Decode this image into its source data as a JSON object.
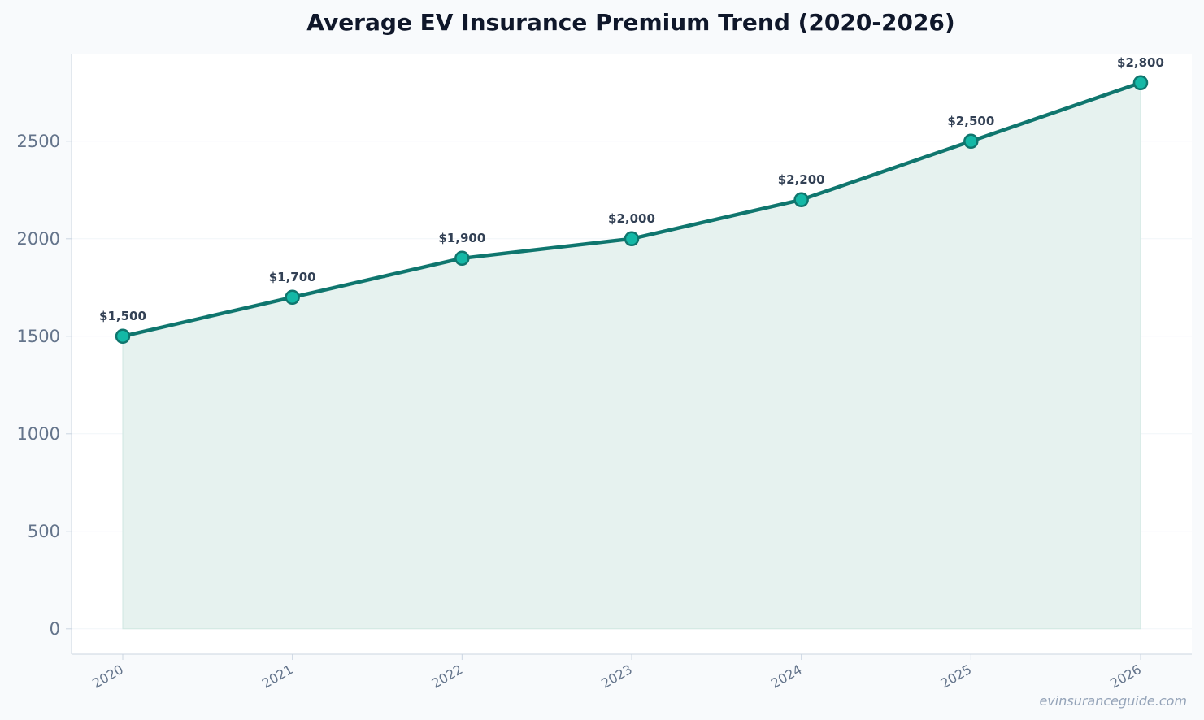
{
  "colors": {
    "line": "#0f766e",
    "marker_fill": "#14b8a6",
    "area_fill": "#e6f2ef",
    "grid": "#f1f5f9",
    "axis": "#cbd5e1"
  },
  "watermark": "evinsuranceguide.com",
  "chart_data": {
    "type": "area",
    "title": "Average EV Insurance Premium Trend (2020-2026)",
    "xlabel": "",
    "ylabel": "",
    "x": [
      "2020",
      "2021",
      "2022",
      "2023",
      "2024",
      "2025",
      "2026"
    ],
    "series": [
      {
        "values": [
          1500,
          1700,
          1900,
          2000,
          2200,
          2500,
          2800
        ],
        "labels": [
          "$1,500",
          "$1,700",
          "$1,900",
          "$2,000",
          "$2,200",
          "$2,500",
          "$2,800"
        ]
      }
    ],
    "yticks": [
      0,
      500,
      1000,
      1500,
      2000,
      2500
    ],
    "ylim": [
      -130,
      2945
    ],
    "grid": true,
    "legend": "none"
  }
}
